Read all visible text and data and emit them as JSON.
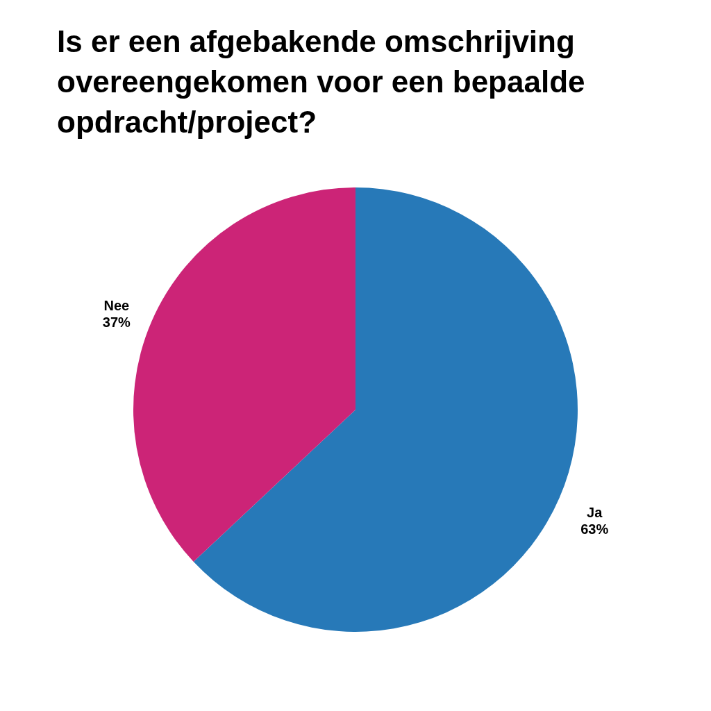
{
  "chart_data": {
    "type": "pie",
    "title": "Is er een afgebakende omschrijving overeengekomen voor een bepaalde opdracht/project?",
    "categories": [
      "Ja",
      "Nee"
    ],
    "values": [
      63,
      37
    ],
    "colors": [
      "#2779b8",
      "#cc2477"
    ],
    "value_labels": [
      "63%",
      "37%"
    ]
  }
}
